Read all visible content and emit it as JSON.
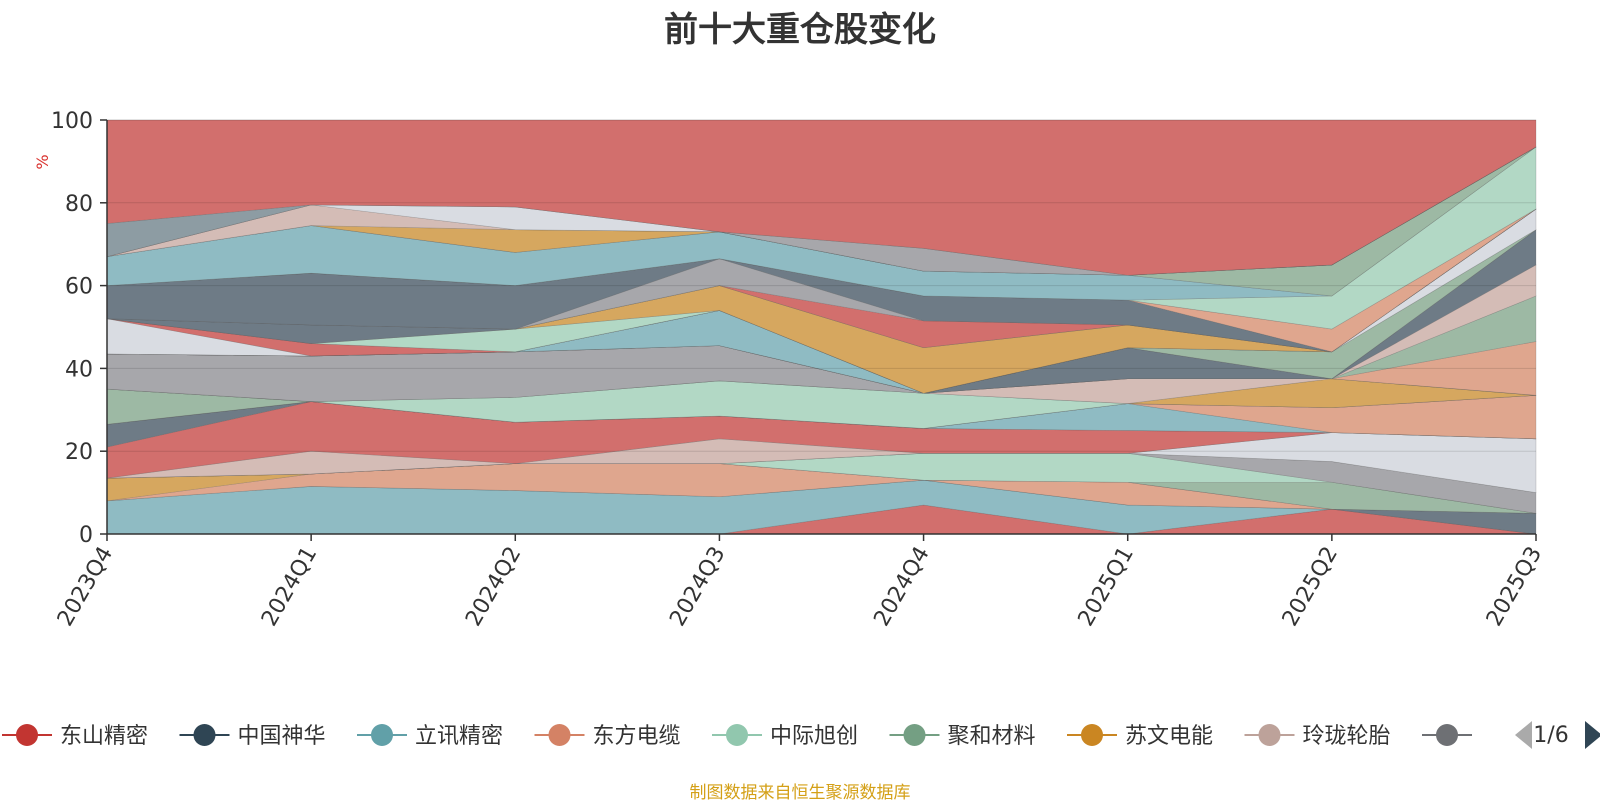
{
  "chart_data": {
    "type": "area",
    "title": "前十大重仓股变化",
    "ylabel": "%",
    "ylim": [
      0,
      100
    ],
    "yticks": [
      0,
      20,
      40,
      60,
      80,
      100
    ],
    "categories": [
      "2023Q4",
      "2024Q1",
      "2024Q2",
      "2024Q3",
      "2024Q4",
      "2025Q1",
      "2025Q2",
      "2025Q3"
    ],
    "layers": [
      {
        "color": "#d26f6d",
        "lower": [
          0,
          0,
          0,
          0,
          0,
          0,
          0,
          0
        ],
        "upper": [
          0,
          0,
          0,
          0,
          7,
          0,
          6,
          0
        ]
      },
      {
        "color": "#8fbbc3",
        "lower": [
          0,
          0,
          0,
          0,
          7,
          0,
          6,
          0
        ],
        "upper": [
          8,
          11.5,
          10.5,
          9,
          13,
          7,
          6,
          0
        ]
      },
      {
        "color": "#6e7b86",
        "lower": [
          8,
          11.5,
          10.5,
          9,
          13,
          7,
          6,
          0
        ],
        "upper": [
          8,
          11.5,
          10.5,
          9,
          13,
          7,
          6,
          5
        ]
      },
      {
        "color": "#dfa68e",
        "lower": [
          8,
          11.5,
          10.5,
          9,
          13,
          7,
          6,
          5
        ],
        "upper": [
          8,
          14.5,
          17,
          17,
          13,
          12.5,
          6,
          5
        ]
      },
      {
        "color": "#d6a75f",
        "lower": [
          8,
          14.5,
          17,
          17,
          13,
          12.5,
          6,
          5
        ],
        "upper": [
          13.5,
          14.5,
          17,
          17,
          13,
          12.5,
          6,
          5
        ]
      },
      {
        "color": "#9db9a4",
        "lower": [
          13.5,
          14.5,
          17,
          17,
          13,
          12.5,
          6,
          5
        ],
        "upper": [
          13.5,
          14.5,
          17,
          17,
          13,
          12.5,
          12.5,
          5
        ]
      },
      {
        "color": "#b2d8c5",
        "lower": [
          13.5,
          14.5,
          17,
          17,
          13,
          12.5,
          12.5,
          5
        ],
        "upper": [
          13.5,
          14.5,
          17,
          17,
          19.5,
          19.5,
          12.5,
          5
        ]
      },
      {
        "color": "#a7a7ab",
        "lower": [
          13.5,
          14.5,
          17,
          17,
          19.5,
          19.5,
          12.5,
          5
        ],
        "upper": [
          13.5,
          14.5,
          17,
          17,
          19.5,
          19.5,
          17.5,
          10
        ]
      },
      {
        "color": "#d9dce2",
        "lower": [
          13.5,
          14.5,
          17,
          17,
          19.5,
          19.5,
          17.5,
          10
        ],
        "upper": [
          13.5,
          14.5,
          17,
          17,
          19.5,
          19.5,
          24.5,
          23
        ]
      },
      {
        "color": "#d4bcb6",
        "lower": [
          13.5,
          14.5,
          17,
          17,
          19.5,
          19.5,
          24.5,
          23
        ],
        "upper": [
          13.5,
          20,
          17,
          23,
          19.5,
          19.5,
          24.5,
          23
        ]
      },
      {
        "color": "#d26f6d",
        "lower": [
          13.5,
          20,
          17,
          23,
          19.5,
          19.5,
          24.5,
          23
        ],
        "upper": [
          21,
          32,
          27,
          28.5,
          25.5,
          25,
          24.5,
          23
        ]
      },
      {
        "color": "#6e7b86",
        "lower": [
          21,
          32,
          27,
          28.5,
          25.5,
          25,
          24.5,
          23
        ],
        "upper": [
          26.5,
          32,
          27,
          28.5,
          25.5,
          25,
          24.5,
          23
        ]
      },
      {
        "color": "#8fbbc3",
        "lower": [
          26.5,
          32,
          27,
          28.5,
          25.5,
          25,
          24.5,
          23
        ],
        "upper": [
          26.5,
          32,
          27,
          28.5,
          25.5,
          31.5,
          24.5,
          23
        ]
      },
      {
        "color": "#dfa68e",
        "lower": [
          26.5,
          32,
          27,
          28.5,
          25.5,
          31.5,
          24.5,
          23
        ],
        "upper": [
          26.5,
          32,
          27,
          28.5,
          25.5,
          31.5,
          30.5,
          33.5
        ]
      },
      {
        "color": "#9db9a4",
        "lower": [
          26.5,
          32,
          27,
          28.5,
          25.5,
          31.5,
          30.5,
          33.5
        ],
        "upper": [
          35,
          32,
          27,
          28.5,
          25.5,
          31.5,
          30.5,
          33.5
        ]
      },
      {
        "color": "#b2d8c5",
        "lower": [
          35,
          32,
          27,
          28.5,
          25.5,
          31.5,
          30.5,
          33.5
        ],
        "upper": [
          35,
          32,
          33,
          37,
          34,
          31.5,
          30.5,
          33.5
        ]
      },
      {
        "color": "#d6a75f",
        "lower": [
          35,
          32,
          33,
          37,
          34,
          31.5,
          30.5,
          33.5
        ],
        "upper": [
          35,
          32,
          33,
          37,
          34,
          31.5,
          37.5,
          33.5
        ]
      },
      {
        "color": "#d4bcb6",
        "lower": [
          35,
          32,
          33,
          37,
          34,
          31.5,
          37.5,
          33.5
        ],
        "upper": [
          35,
          32,
          33,
          37,
          34,
          37.5,
          37.5,
          33.5
        ]
      },
      {
        "color": "#a7a7ab",
        "lower": [
          35,
          32,
          33,
          37,
          34,
          37.5,
          37.5,
          33.5
        ],
        "upper": [
          43.5,
          43,
          44,
          45.5,
          34,
          37.5,
          37.5,
          33.5
        ]
      },
      {
        "color": "#dfa68e",
        "lower": [
          43.5,
          43,
          44,
          45.5,
          34,
          37.5,
          37.5,
          33.5
        ],
        "upper": [
          43.5,
          43,
          44,
          45.5,
          34,
          37.5,
          37.5,
          46.5
        ]
      },
      {
        "color": "#9db9a4",
        "lower": [
          43.5,
          43,
          44,
          45.5,
          34,
          37.5,
          37.5,
          46.5
        ],
        "upper": [
          43.5,
          43,
          44,
          45.5,
          34,
          37.5,
          37.5,
          57.5
        ]
      },
      {
        "color": "#d4bcb6",
        "lower": [
          43.5,
          43,
          44,
          45.5,
          34,
          37.5,
          37.5,
          57.5
        ],
        "upper": [
          43.5,
          43,
          44,
          45.5,
          34,
          37.5,
          37.5,
          65
        ]
      },
      {
        "color": "#6e7b86",
        "lower": [
          43.5,
          43,
          44,
          45.5,
          34,
          37.5,
          37.5,
          65
        ],
        "upper": [
          43.5,
          43,
          44,
          45.5,
          34,
          45,
          37.5,
          73.5
        ]
      },
      {
        "color": "#8fbbc3",
        "lower": [
          43.5,
          43,
          44,
          45.5,
          34,
          45,
          37.5,
          73.5
        ],
        "upper": [
          43.5,
          43,
          44,
          54,
          34,
          45,
          37.5,
          73.5
        ]
      },
      {
        "color": "#9db9a4",
        "lower": [
          43.5,
          43,
          44,
          54,
          34,
          45,
          37.5,
          73.5
        ],
        "upper": [
          43.5,
          43,
          44,
          54,
          34,
          45,
          44,
          73.5
        ]
      },
      {
        "color": "#d9dce2",
        "lower": [
          43.5,
          43,
          44,
          54,
          34,
          45,
          44,
          73.5
        ],
        "upper": [
          52,
          43,
          44,
          54,
          34,
          45,
          44,
          78.5
        ]
      },
      {
        "color": "#d26f6d",
        "lower": [
          52,
          43,
          44,
          54,
          34,
          45,
          44,
          78.5
        ],
        "upper": [
          52,
          46,
          44,
          54,
          34,
          45,
          44,
          78.5
        ]
      },
      {
        "color": "#b2d8c5",
        "lower": [
          52,
          46,
          44,
          54,
          34,
          45,
          44,
          78.5
        ],
        "upper": [
          52,
          46,
          49.5,
          54,
          34,
          45,
          44,
          78.5
        ]
      },
      {
        "color": "#d6a75f",
        "lower": [
          52,
          46,
          49.5,
          54,
          34,
          45,
          44,
          78.5
        ],
        "upper": [
          52,
          46,
          49.5,
          60,
          45,
          50.5,
          44,
          78.5
        ]
      },
      {
        "color": "#6e7b86",
        "lower": [
          52,
          46,
          49.5,
          60,
          45,
          50.5,
          44,
          78.5
        ],
        "upper": [
          52,
          50.5,
          49.5,
          60,
          45,
          50.5,
          44,
          78.5
        ]
      },
      {
        "color": "#d26f6d",
        "lower": [
          52,
          50.5,
          49.5,
          60,
          45,
          50.5,
          44,
          78.5
        ],
        "upper": [
          52,
          50.5,
          49.5,
          60,
          51.5,
          50.5,
          44,
          78.5
        ]
      },
      {
        "color": "#a7a7ab",
        "lower": [
          52,
          50.5,
          49.5,
          60,
          51.5,
          50.5,
          44,
          78.5
        ],
        "upper": [
          52,
          50.5,
          49.5,
          66.5,
          51.5,
          50.5,
          44,
          78.5
        ]
      },
      {
        "color": "#6e7b86",
        "lower": [
          52,
          50.5,
          49.5,
          66.5,
          51.5,
          50.5,
          44,
          78.5
        ],
        "upper": [
          60,
          63,
          60,
          66.5,
          57.5,
          56.5,
          44,
          78.5
        ]
      },
      {
        "color": "#dfa68e",
        "lower": [
          60,
          63,
          60,
          66.5,
          57.5,
          56.5,
          44,
          78.5
        ],
        "upper": [
          60,
          63,
          60,
          66.5,
          57.5,
          56.5,
          49.5,
          78.5
        ]
      },
      {
        "color": "#b2d8c5",
        "lower": [
          60,
          63,
          60,
          66.5,
          57.5,
          56.5,
          49.5,
          78.5
        ],
        "upper": [
          60,
          63,
          60,
          66.5,
          57.5,
          56.5,
          57.5,
          93.5
        ]
      },
      {
        "color": "#8fbbc3",
        "lower": [
          60,
          63,
          60,
          66.5,
          57.5,
          56.5,
          57.5,
          93.5
        ],
        "upper": [
          67,
          74.5,
          68,
          73,
          63.5,
          62.5,
          57.5,
          93.5
        ]
      },
      {
        "color": "#9db9a4",
        "lower": [
          67,
          74.5,
          68,
          73,
          63.5,
          62.5,
          57.5,
          93.5
        ],
        "upper": [
          67,
          74.5,
          68,
          73,
          63.5,
          62.5,
          65,
          93.5
        ]
      },
      {
        "color": "#d6a75f",
        "lower": [
          67,
          74.5,
          68,
          73,
          63.5,
          62.5,
          65,
          93.5
        ],
        "upper": [
          67,
          74.5,
          73.5,
          73,
          63.5,
          62.5,
          65,
          93.5
        ]
      },
      {
        "color": "#d4bcb6",
        "lower": [
          67,
          74.5,
          73.5,
          73,
          63.5,
          62.5,
          65,
          93.5
        ],
        "upper": [
          67,
          79.5,
          73.5,
          73,
          63.5,
          62.5,
          65,
          93.5
        ]
      },
      {
        "color": "#d9dce2",
        "lower": [
          67,
          79.5,
          73.5,
          73,
          63.5,
          62.5,
          65,
          93.5
        ],
        "upper": [
          67,
          79.5,
          79,
          73,
          63.5,
          62.5,
          65,
          93.5
        ]
      },
      {
        "color": "#a7a7ab",
        "lower": [
          67,
          79.5,
          79,
          73,
          63.5,
          62.5,
          65,
          93.5
        ],
        "upper": [
          67,
          79.5,
          79,
          73,
          69,
          62.5,
          65,
          93.5
        ]
      },
      {
        "color": "#8d9ca3",
        "lower": [
          67,
          79.5,
          79,
          73,
          69,
          62.5,
          65,
          93.5
        ],
        "upper": [
          75,
          79.5,
          79,
          73,
          69,
          62.5,
          65,
          93.5
        ]
      },
      {
        "color": "#d26f6d",
        "lower": [
          75,
          79.5,
          79,
          73,
          69,
          62.5,
          65,
          93.5
        ],
        "upper": [
          100,
          100,
          100,
          100,
          100,
          100,
          100,
          100
        ]
      }
    ],
    "legend": [
      {
        "name": "东山精密",
        "color": "#c23531"
      },
      {
        "name": "中国神华",
        "color": "#2f4554"
      },
      {
        "name": "立讯精密",
        "color": "#61a0a8"
      },
      {
        "name": "东方电缆",
        "color": "#d48265"
      },
      {
        "name": "中际旭创",
        "color": "#91c7ae"
      },
      {
        "name": "聚和材料",
        "color": "#749f83"
      },
      {
        "name": "苏文电能",
        "color": "#ca8622"
      },
      {
        "name": "玲珑轮胎",
        "color": "#bda29a"
      },
      {
        "name": "",
        "color": "#6e7074"
      }
    ],
    "legend_page": "1/6"
  },
  "source_note": "制图数据来自恒生聚源数据库"
}
